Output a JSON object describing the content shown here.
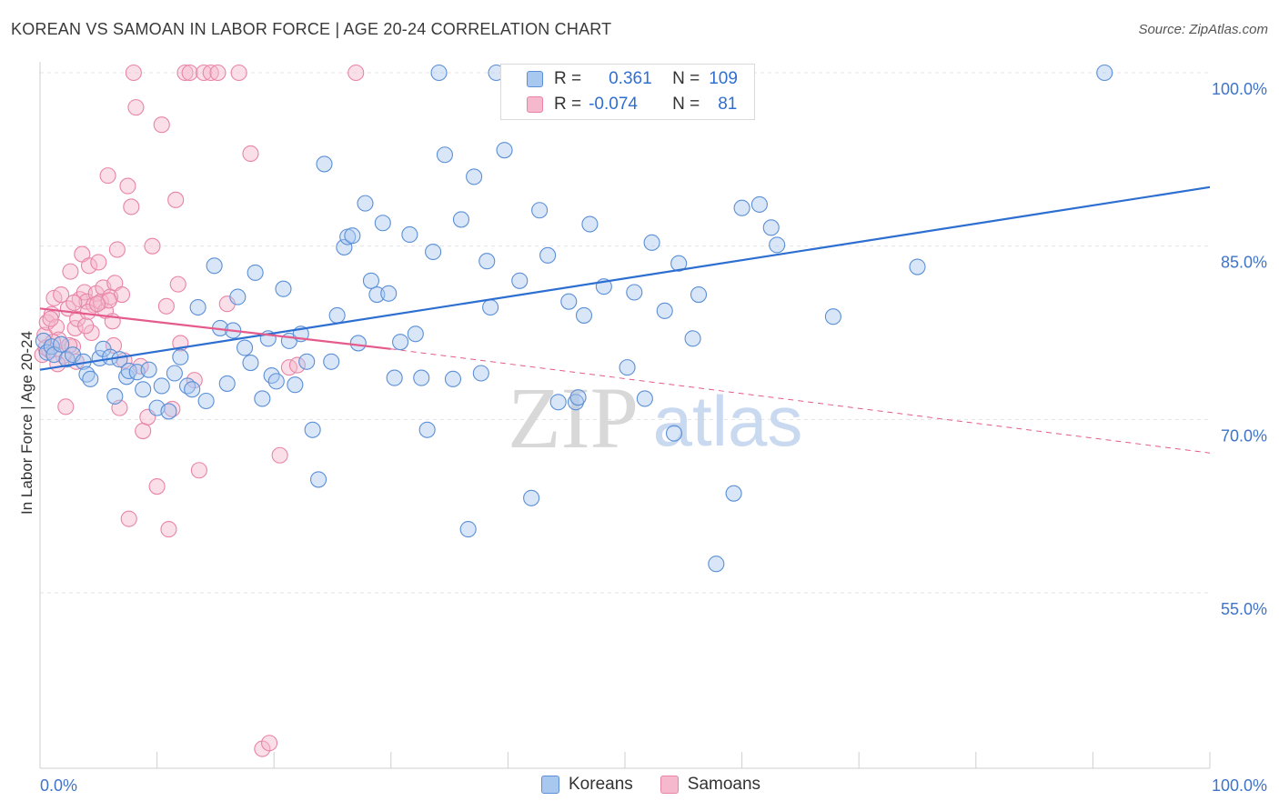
{
  "title": "KOREAN VS SAMOAN IN LABOR FORCE | AGE 20-24 CORRELATION CHART",
  "source": "Source: ZipAtlas.com",
  "watermark": {
    "zip": "ZIP",
    "atlas": "atlas"
  },
  "legend": {
    "rows": [
      {
        "r_label": "R =",
        "r_value": "0.361",
        "n_label": "N =",
        "n_value": "109"
      },
      {
        "r_label": "R =",
        "r_value": "-0.074",
        "n_label": "N =",
        "n_value": "81"
      }
    ],
    "bottom": [
      "Koreans",
      "Samoans"
    ]
  },
  "colors": {
    "korean_fill": "#a9c8ef",
    "korean_stroke": "#5b8fd6",
    "korean_line": "#2d6fd0",
    "samoan_fill": "#f5b8cc",
    "samoan_stroke": "#e884a6",
    "samoan_line": "#e45b8c",
    "axis_text": "#3f74c9",
    "grid": "#e3e3e3"
  },
  "chart_data": {
    "type": "scatter",
    "title": "KOREAN VS SAMOAN IN LABOR FORCE | AGE 20-24 CORRELATION CHART",
    "ylabel": "In Labor Force | Age 20-24",
    "xlabel": "",
    "xlim": [
      0,
      100
    ],
    "ylim": [
      40,
      102
    ],
    "x_tick_labels": [
      "0.0%",
      "100.0%"
    ],
    "y_ticks": [
      55,
      70,
      85,
      100
    ],
    "y_tick_labels": [
      "55.0%",
      "70.0%",
      "85.0%",
      "100.0%"
    ],
    "grid": true,
    "legend_position": "top-center",
    "series": [
      {
        "name": "Koreans",
        "r": 0.361,
        "n": 109,
        "trend": {
          "x": [
            0,
            100
          ],
          "y": [
            74.3,
            90.1
          ],
          "style": "solid"
        },
        "points": [
          [
            0.3,
            76.8
          ],
          [
            0.6,
            75.8
          ],
          [
            1.0,
            76.3
          ],
          [
            1.2,
            75.6
          ],
          [
            1.8,
            76.5
          ],
          [
            2.3,
            75.2
          ],
          [
            2.8,
            75.6
          ],
          [
            3.7,
            75.0
          ],
          [
            4.0,
            73.9
          ],
          [
            4.3,
            73.5
          ],
          [
            5.1,
            75.3
          ],
          [
            5.4,
            76.1
          ],
          [
            6.0,
            75.4
          ],
          [
            6.4,
            72.0
          ],
          [
            6.8,
            75.2
          ],
          [
            7.4,
            73.7
          ],
          [
            7.6,
            74.2
          ],
          [
            8.3,
            74.1
          ],
          [
            8.8,
            72.6
          ],
          [
            9.3,
            74.3
          ],
          [
            10.0,
            71.0
          ],
          [
            10.4,
            72.9
          ],
          [
            11.0,
            70.7
          ],
          [
            11.5,
            74.0
          ],
          [
            12.0,
            75.4
          ],
          [
            12.6,
            72.9
          ],
          [
            13.0,
            72.6
          ],
          [
            13.5,
            79.7
          ],
          [
            14.2,
            71.6
          ],
          [
            14.9,
            83.3
          ],
          [
            15.4,
            77.9
          ],
          [
            16.0,
            73.1
          ],
          [
            16.5,
            77.7
          ],
          [
            16.9,
            80.6
          ],
          [
            17.5,
            76.2
          ],
          [
            18.0,
            74.9
          ],
          [
            18.4,
            82.7
          ],
          [
            19.0,
            71.8
          ],
          [
            19.5,
            77.0
          ],
          [
            19.8,
            73.8
          ],
          [
            20.2,
            73.3
          ],
          [
            20.8,
            81.3
          ],
          [
            21.3,
            76.8
          ],
          [
            21.8,
            73.0
          ],
          [
            22.3,
            77.4
          ],
          [
            22.8,
            75.0
          ],
          [
            23.3,
            69.1
          ],
          [
            23.8,
            64.8
          ],
          [
            24.3,
            92.1
          ],
          [
            24.9,
            75.0
          ],
          [
            25.4,
            79.0
          ],
          [
            26.0,
            84.9
          ],
          [
            26.3,
            85.8
          ],
          [
            26.7,
            85.9
          ],
          [
            27.2,
            76.6
          ],
          [
            27.8,
            88.7
          ],
          [
            28.3,
            82.0
          ],
          [
            28.8,
            80.8
          ],
          [
            29.3,
            87.0
          ],
          [
            29.8,
            80.9
          ],
          [
            30.3,
            73.6
          ],
          [
            30.8,
            76.7
          ],
          [
            31.6,
            86.0
          ],
          [
            32.1,
            77.4
          ],
          [
            32.6,
            73.6
          ],
          [
            33.1,
            69.1
          ],
          [
            33.6,
            84.5
          ],
          [
            34.1,
            100.0
          ],
          [
            34.6,
            92.9
          ],
          [
            35.3,
            73.5
          ],
          [
            36.0,
            87.3
          ],
          [
            36.6,
            60.5
          ],
          [
            37.1,
            91.0
          ],
          [
            37.7,
            74.0
          ],
          [
            38.2,
            83.7
          ],
          [
            38.5,
            79.7
          ],
          [
            39.0,
            100.0
          ],
          [
            39.7,
            93.3
          ],
          [
            40.3,
            100.0
          ],
          [
            41.0,
            82.0
          ],
          [
            42.0,
            63.2
          ],
          [
            42.7,
            88.1
          ],
          [
            43.4,
            84.2
          ],
          [
            44.3,
            71.5
          ],
          [
            45.2,
            80.2
          ],
          [
            45.8,
            71.5
          ],
          [
            46.5,
            79.0
          ],
          [
            47.0,
            86.9
          ],
          [
            48.2,
            81.5
          ],
          [
            49.3,
            100.0
          ],
          [
            50.2,
            74.5
          ],
          [
            50.8,
            81.0
          ],
          [
            51.7,
            71.8
          ],
          [
            52.3,
            85.3
          ],
          [
            53.4,
            79.4
          ],
          [
            54.2,
            68.8
          ],
          [
            54.6,
            83.5
          ],
          [
            55.8,
            77.0
          ],
          [
            56.3,
            80.8
          ],
          [
            57.8,
            57.5
          ],
          [
            59.3,
            63.6
          ],
          [
            60.0,
            88.3
          ],
          [
            61.5,
            88.6
          ],
          [
            62.5,
            86.6
          ],
          [
            63.0,
            85.1
          ],
          [
            67.8,
            78.9
          ],
          [
            75.0,
            83.2
          ],
          [
            91.0,
            100.0
          ],
          [
            46.0,
            71.9
          ]
        ]
      },
      {
        "name": "Samoans",
        "r": -0.074,
        "n": 81,
        "trend": {
          "x": [
            0,
            30
          ],
          "y": [
            79.6,
            76.1
          ],
          "style": "solid",
          "extended": {
            "x": [
              30,
              100
            ],
            "y": [
              76.1,
              67.1
            ],
            "style": "dashed"
          }
        },
        "points": [
          [
            0.2,
            75.6
          ],
          [
            0.4,
            77.3
          ],
          [
            0.6,
            78.4
          ],
          [
            0.8,
            76.0
          ],
          [
            1.0,
            79.1
          ],
          [
            1.2,
            80.5
          ],
          [
            1.4,
            78.0
          ],
          [
            1.6,
            76.9
          ],
          [
            1.8,
            80.8
          ],
          [
            2.0,
            75.5
          ],
          [
            2.2,
            71.1
          ],
          [
            2.4,
            79.6
          ],
          [
            2.6,
            82.8
          ],
          [
            2.8,
            76.3
          ],
          [
            3.0,
            77.9
          ],
          [
            3.2,
            78.7
          ],
          [
            3.4,
            80.4
          ],
          [
            3.6,
            84.3
          ],
          [
            3.8,
            81.0
          ],
          [
            4.0,
            80.2
          ],
          [
            4.2,
            83.3
          ],
          [
            4.4,
            77.5
          ],
          [
            4.6,
            79.9
          ],
          [
            4.8,
            80.9
          ],
          [
            5.0,
            83.6
          ],
          [
            5.2,
            80.2
          ],
          [
            5.4,
            81.4
          ],
          [
            5.6,
            79.4
          ],
          [
            5.8,
            91.1
          ],
          [
            6.0,
            80.6
          ],
          [
            6.2,
            78.5
          ],
          [
            6.4,
            81.8
          ],
          [
            6.6,
            84.7
          ],
          [
            6.8,
            71.0
          ],
          [
            7.0,
            80.8
          ],
          [
            7.2,
            75.1
          ],
          [
            7.5,
            90.2
          ],
          [
            7.6,
            61.4
          ],
          [
            7.8,
            88.4
          ],
          [
            8.0,
            100.0
          ],
          [
            8.2,
            97.0
          ],
          [
            8.6,
            74.6
          ],
          [
            8.8,
            69.0
          ],
          [
            9.2,
            70.2
          ],
          [
            9.6,
            85.0
          ],
          [
            10.0,
            64.2
          ],
          [
            10.4,
            95.5
          ],
          [
            10.8,
            79.8
          ],
          [
            11.0,
            60.5
          ],
          [
            11.3,
            70.9
          ],
          [
            11.6,
            89.0
          ],
          [
            11.8,
            81.7
          ],
          [
            12.0,
            76.6
          ],
          [
            12.4,
            100.0
          ],
          [
            12.8,
            100.0
          ],
          [
            13.2,
            73.4
          ],
          [
            13.6,
            65.6
          ],
          [
            14.0,
            100.0
          ],
          [
            14.6,
            100.0
          ],
          [
            15.2,
            100.0
          ],
          [
            16.0,
            80.0
          ],
          [
            17.0,
            100.0
          ],
          [
            18.0,
            93.0
          ],
          [
            19.0,
            41.5
          ],
          [
            19.6,
            42.0
          ],
          [
            20.5,
            66.9
          ],
          [
            21.3,
            74.5
          ],
          [
            22.0,
            74.7
          ],
          [
            27.0,
            100.0
          ],
          [
            2.5,
            76.4
          ],
          [
            3.1,
            75.0
          ],
          [
            4.1,
            79.3
          ],
          [
            1.5,
            74.8
          ],
          [
            0.9,
            78.7
          ],
          [
            2.9,
            80.1
          ],
          [
            5.9,
            80.3
          ],
          [
            6.3,
            76.4
          ],
          [
            1.1,
            76.7
          ],
          [
            0.5,
            76.2
          ],
          [
            3.9,
            78.1
          ],
          [
            4.9,
            80.0
          ]
        ]
      }
    ]
  }
}
